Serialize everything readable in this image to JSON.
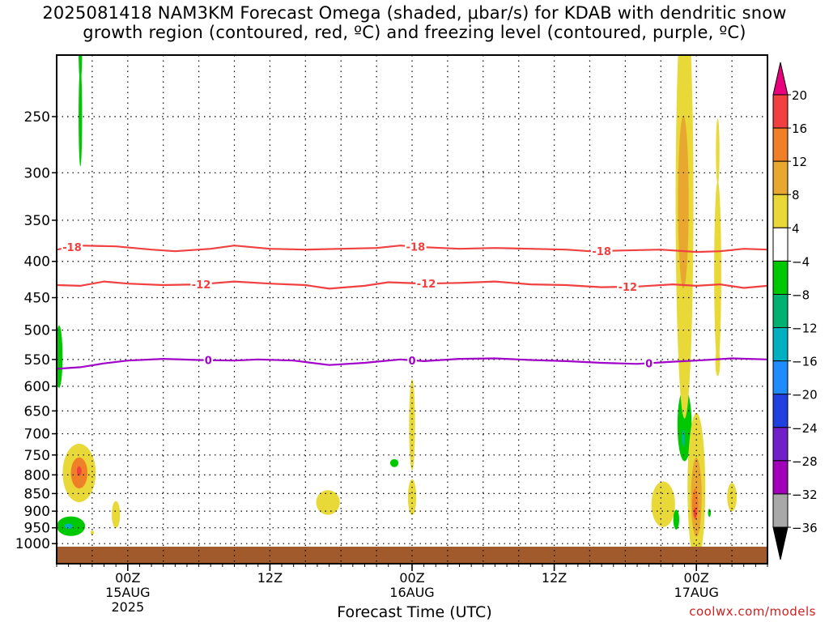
{
  "header": {
    "title_line1": "2025081418 NAM3KM Forecast Omega (shaded, μbar/s) for KDAB with dendritic snow",
    "title_line2": "growth region (contoured, red, ºC) and freezing level (contoured, purple, ºC)"
  },
  "footer": {
    "xlabel": "Forecast Time (UTC)",
    "watermark": "coolwx.com/models"
  },
  "chart_data": {
    "type": "heatmap",
    "y_axis": {
      "quantity": "pressure (hPa)",
      "scale": "log",
      "inverted": true,
      "range": [
        1030,
        200
      ],
      "ticks": [
        250,
        300,
        350,
        400,
        450,
        500,
        550,
        600,
        650,
        700,
        750,
        800,
        850,
        900,
        950,
        1000
      ]
    },
    "x_axis": {
      "range_hours": [
        0,
        60
      ],
      "ticks": [
        {
          "hour": 6,
          "label": "00Z",
          "sub1": "15AUG",
          "sub2": "2025"
        },
        {
          "hour": 18,
          "label": "12Z",
          "sub1": "",
          "sub2": ""
        },
        {
          "hour": 30,
          "label": "00Z",
          "sub1": "16AUG",
          "sub2": ""
        },
        {
          "hour": 42,
          "label": "12Z",
          "sub1": "",
          "sub2": ""
        },
        {
          "hour": 54,
          "label": "00Z",
          "sub1": "17AUG",
          "sub2": ""
        }
      ]
    },
    "grid": true,
    "colorbar": {
      "labels": [
        "20",
        "16",
        "12",
        "8",
        "4",
        "−4",
        "−8",
        "−12",
        "−16",
        "−20",
        "−24",
        "−28",
        "−32",
        "−36"
      ],
      "colors": [
        "#e8007c",
        "#f04040",
        "#f08028",
        "#e8a830",
        "#e8d838",
        "#ffffff",
        "#00c800",
        "#00b070",
        "#00b0c0",
        "#1e8cff",
        "#2040e0",
        "#7020c8",
        "#a000b8",
        "#a8a8a8",
        "#000000"
      ]
    },
    "contours": [
      {
        "label": "-18",
        "color": "#f04040",
        "points": [
          [
            0,
            385
          ],
          [
            2,
            380
          ],
          [
            5,
            381
          ],
          [
            8,
            385
          ],
          [
            10,
            387
          ],
          [
            13,
            384
          ],
          [
            15,
            380
          ],
          [
            18,
            384
          ],
          [
            21,
            385
          ],
          [
            24,
            384
          ],
          [
            27,
            383
          ],
          [
            29,
            380
          ],
          [
            31,
            382
          ],
          [
            34,
            384
          ],
          [
            37,
            383
          ],
          [
            40,
            384
          ],
          [
            43,
            385
          ],
          [
            45,
            387
          ],
          [
            48,
            386
          ],
          [
            51,
            385
          ],
          [
            54,
            388
          ],
          [
            56,
            387
          ],
          [
            58,
            384
          ],
          [
            60,
            385
          ]
        ],
        "label_hours": [
          1.3,
          30.3,
          46
        ]
      },
      {
        "label": "-12",
        "color": "#f04040",
        "points": [
          [
            0,
            432
          ],
          [
            2,
            433
          ],
          [
            4,
            427
          ],
          [
            6,
            430
          ],
          [
            9,
            432
          ],
          [
            12,
            431
          ],
          [
            15,
            427
          ],
          [
            18,
            430
          ],
          [
            21,
            432
          ],
          [
            23,
            437
          ],
          [
            26,
            433
          ],
          [
            28,
            428
          ],
          [
            31,
            430
          ],
          [
            34,
            429
          ],
          [
            37,
            427
          ],
          [
            40,
            431
          ],
          [
            43,
            432
          ],
          [
            46,
            435
          ],
          [
            49,
            434
          ],
          [
            52,
            431
          ],
          [
            54,
            433
          ],
          [
            56,
            431
          ],
          [
            58,
            436
          ],
          [
            60,
            433
          ]
        ],
        "label_hours": [
          12.2,
          31.2,
          48.2
        ]
      },
      {
        "label": "0",
        "color": "#a000c8",
        "points": [
          [
            0,
            567
          ],
          [
            2,
            564
          ],
          [
            4,
            557
          ],
          [
            6,
            552
          ],
          [
            9,
            549
          ],
          [
            12,
            551
          ],
          [
            15,
            552
          ],
          [
            17,
            550
          ],
          [
            20,
            552
          ],
          [
            23,
            560
          ],
          [
            26,
            556
          ],
          [
            29,
            550
          ],
          [
            31,
            553
          ],
          [
            34,
            549
          ],
          [
            37,
            548
          ],
          [
            40,
            551
          ],
          [
            43,
            553
          ],
          [
            46,
            556
          ],
          [
            49,
            558
          ],
          [
            52,
            554
          ],
          [
            54,
            552
          ],
          [
            57,
            548
          ],
          [
            60,
            550
          ]
        ],
        "label_hours": [
          12.8,
          30,
          50
        ]
      }
    ],
    "omega_features": [
      {
        "hour": 2.0,
        "p": 250,
        "dh": 0.15,
        "dp": 40,
        "color": "#00c800"
      },
      {
        "hour": 2.0,
        "p": 202,
        "dh": 0.15,
        "dp": 20,
        "color": "#00c800"
      },
      {
        "hour": 0.2,
        "p": 545,
        "dh": 0.3,
        "dp": 55,
        "color": "#00c800"
      },
      {
        "hour": 1.2,
        "p": 945,
        "dh": 1.2,
        "dp": 30,
        "color": "#00c800"
      },
      {
        "hour": 1.0,
        "p": 945,
        "dh": 0.35,
        "dp": 8,
        "color": "#00b0c0"
      },
      {
        "hour": 1.9,
        "p": 795,
        "dh": 1.4,
        "dp": 75,
        "color": "#e8d838"
      },
      {
        "hour": 1.9,
        "p": 795,
        "dh": 0.7,
        "dp": 40,
        "color": "#f08028"
      },
      {
        "hour": 1.9,
        "p": 790,
        "dh": 0.2,
        "dp": 12,
        "color": "#f04040"
      },
      {
        "hour": 3.0,
        "p": 965,
        "dh": 0.15,
        "dp": 6,
        "color": "#e8d838"
      },
      {
        "hour": 5.0,
        "p": 910,
        "dh": 0.35,
        "dp": 40,
        "color": "#e8d838"
      },
      {
        "hour": 22.9,
        "p": 875,
        "dh": 1.0,
        "dp": 35,
        "color": "#e8d838"
      },
      {
        "hour": 28.5,
        "p": 770,
        "dh": 0.35,
        "dp": 10,
        "color": "#00c800"
      },
      {
        "hour": 30.0,
        "p": 680,
        "dh": 0.25,
        "dp": 100,
        "color": "#e8d838"
      },
      {
        "hour": 30.0,
        "p": 860,
        "dh": 0.35,
        "dp": 50,
        "color": "#e8d838"
      },
      {
        "hour": 51.2,
        "p": 880,
        "dh": 1.0,
        "dp": 65,
        "color": "#e8d838"
      },
      {
        "hour": 52.3,
        "p": 925,
        "dh": 0.25,
        "dp": 30,
        "color": "#00c800"
      },
      {
        "hour": 53.0,
        "p": 680,
        "dh": 0.6,
        "dp": 80,
        "color": "#00c800"
      },
      {
        "hour": 52.9,
        "p": 710,
        "dh": 0.1,
        "dp": 20,
        "color": "#00b0c0"
      },
      {
        "hour": 53.0,
        "p": 330,
        "dh": 0.75,
        "dp": 200,
        "color": "#e8d838"
      },
      {
        "hour": 52.9,
        "p": 330,
        "dh": 0.45,
        "dp": 90,
        "color": "#e8a830"
      },
      {
        "hour": 55.8,
        "p": 415,
        "dh": 0.3,
        "dp": 120,
        "color": "#e8d838"
      },
      {
        "hour": 55.8,
        "p": 280,
        "dh": 0.15,
        "dp": 30,
        "color": "#e8d838"
      },
      {
        "hour": 55.8,
        "p": 555,
        "dh": 0.2,
        "dp": 25,
        "color": "#e8d838"
      },
      {
        "hour": 54.0,
        "p": 835,
        "dh": 0.75,
        "dp": 200,
        "color": "#e8d838"
      },
      {
        "hour": 54.0,
        "p": 860,
        "dh": 0.45,
        "dp": 110,
        "color": "#e8a830"
      },
      {
        "hour": 53.9,
        "p": 880,
        "dh": 0.25,
        "dp": 45,
        "color": "#f08028"
      },
      {
        "hour": 53.9,
        "p": 905,
        "dh": 0.12,
        "dp": 15,
        "color": "#f04040"
      },
      {
        "hour": 55.1,
        "p": 905,
        "dh": 0.12,
        "dp": 12,
        "color": "#00c800"
      },
      {
        "hour": 57.0,
        "p": 860,
        "dh": 0.4,
        "dp": 40,
        "color": "#e8d838"
      }
    ],
    "ground": {
      "color": "#a05a2c",
      "p_top": 1010
    }
  }
}
